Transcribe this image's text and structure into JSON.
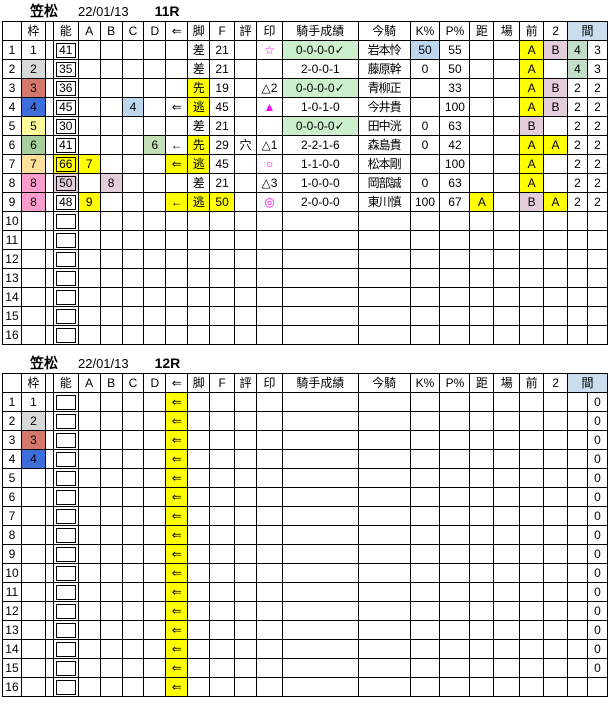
{
  "palette": {
    "yellow": "#FFFF00",
    "paleyellow": "#FFFF9C",
    "gray": "#D9D9D9",
    "salmon": "#D6796C",
    "blue": "#3E6EDC",
    "green6": "#A6CF9B",
    "orange7": "#FFE19B",
    "pink8": "#FF9CCE",
    "lblue": "#BDD7EE",
    "lgreen": "#C5E0B4",
    "mint": "#CCEFCE",
    "sage": "#C2DDC8",
    "thistle": "#E5CEDC",
    "headerblue": "#CBDDEF",
    "magenta": "#FF00FF"
  },
  "tables": [
    {
      "title": {
        "track": "笠松",
        "date": "22/01/13",
        "race": "11R"
      },
      "header": [
        "",
        "枠",
        "",
        "能",
        "A",
        "B",
        "C",
        "D",
        "⇐",
        "脚",
        "F",
        "評",
        "印",
        "騎手成績",
        "今騎",
        "K%",
        "P%",
        "距",
        "場",
        "前",
        "2",
        {
          "t": "間",
          "span": 2,
          "bg": "headerblue"
        }
      ],
      "rows": [
        [
          "1",
          "1",
          "",
          "41",
          "",
          "",
          "",
          "",
          "",
          "差",
          "21",
          "",
          {
            "t": "☆",
            "fg": "magenta"
          },
          {
            "t": "0-0-0-0✓",
            "bg": "mint"
          },
          "岩本怜",
          {
            "t": "50",
            "bg": "lblue"
          },
          "55",
          "",
          "",
          {
            "t": "A",
            "bg": "yellow"
          },
          {
            "t": "B",
            "bg": "thistle"
          },
          {
            "t": "4",
            "bg": "sage"
          },
          "3"
        ],
        [
          "2",
          {
            "t": "2",
            "bg": "gray"
          },
          "",
          "35",
          "",
          "",
          "",
          "",
          "",
          "差",
          "21",
          "",
          "",
          "2-0-0-1",
          "藤原幹",
          "0",
          "50",
          "",
          "",
          {
            "t": "A",
            "bg": "yellow"
          },
          "",
          {
            "t": "4",
            "bg": "sage"
          },
          "3"
        ],
        [
          "3",
          {
            "t": "3",
            "bg": "salmon"
          },
          "",
          "36",
          "",
          "",
          "",
          "",
          "",
          {
            "t": "先",
            "bg": "yellow"
          },
          "19",
          "",
          "△2",
          {
            "t": "0-0-0-0✓",
            "bg": "mint"
          },
          "青柳正",
          "",
          "33",
          "",
          "",
          {
            "t": "A",
            "bg": "yellow"
          },
          {
            "t": "B",
            "bg": "thistle"
          },
          "2",
          "2"
        ],
        [
          "4",
          {
            "t": "4",
            "bg": "blue"
          },
          "",
          "45",
          "",
          "",
          {
            "t": "4",
            "bg": "lblue"
          },
          "",
          "⇐",
          {
            "t": "逃",
            "bg": "yellow"
          },
          "45",
          "",
          {
            "t": "▲",
            "fg": "magenta"
          },
          "1-0-1-0",
          "今井貴",
          "",
          "100",
          "",
          "",
          {
            "t": "A",
            "bg": "yellow"
          },
          {
            "t": "B",
            "bg": "thistle"
          },
          "2",
          "2"
        ],
        [
          "5",
          {
            "t": "5",
            "bg": "paleyellow"
          },
          "",
          "30",
          "",
          "",
          "",
          "",
          "",
          "差",
          "21",
          "",
          "",
          {
            "t": "0-0-0-0✓",
            "bg": "mint"
          },
          "田中洸",
          "0",
          "63",
          "",
          "",
          {
            "t": "B",
            "bg": "thistle"
          },
          "",
          "2",
          "2"
        ],
        [
          "6",
          {
            "t": "6",
            "bg": "green6"
          },
          "",
          "41",
          "",
          "",
          "",
          {
            "t": "6",
            "bg": "lgreen"
          },
          "←",
          {
            "t": "先",
            "bg": "yellow"
          },
          "29",
          "穴",
          "△1",
          "2-2-1-6",
          "森島貴",
          "0",
          "42",
          "",
          "",
          {
            "t": "A",
            "bg": "yellow"
          },
          {
            "t": "A",
            "bg": "yellow"
          },
          "2",
          "2"
        ],
        [
          "7",
          {
            "t": "7",
            "bg": "orange7"
          },
          "",
          {
            "t": "66",
            "bg": "yellow"
          },
          {
            "t": "7",
            "bg": "yellow"
          },
          "",
          "",
          "",
          {
            "t": "⇐",
            "bg": "yellow"
          },
          {
            "t": "逃",
            "bg": "yellow"
          },
          "45",
          "",
          {
            "t": "○",
            "fg": "magenta"
          },
          "1-1-0-0",
          "松本剛",
          "",
          "100",
          "",
          "",
          {
            "t": "A",
            "bg": "yellow"
          },
          "",
          "2",
          "2"
        ],
        [
          "8",
          {
            "t": "8",
            "bg": "pink8"
          },
          "",
          {
            "t": "50",
            "bg": "thistle"
          },
          "",
          {
            "t": "8",
            "bg": "thistle"
          },
          "",
          "",
          "",
          "差",
          "21",
          "",
          "△3",
          "1-0-0-0",
          "岡部誠",
          "0",
          "63",
          "",
          "",
          {
            "t": "A",
            "bg": "yellow"
          },
          "",
          "2",
          "2"
        ],
        [
          "9",
          {
            "t": "8",
            "bg": "pink8"
          },
          "",
          "48",
          {
            "t": "9",
            "bg": "yellow"
          },
          "",
          "",
          "",
          {
            "t": "←",
            "bg": "yellow"
          },
          {
            "t": "逃",
            "bg": "yellow"
          },
          {
            "t": "50",
            "bg": "yellow"
          },
          "",
          {
            "t": "◎",
            "fg": "magenta"
          },
          "2-0-0-0",
          "東川慎",
          "100",
          "67",
          {
            "t": "A",
            "bg": "yellow"
          },
          "",
          {
            "t": "B",
            "bg": "thistle"
          },
          {
            "t": "A",
            "bg": "yellow"
          },
          "2",
          "2"
        ],
        [
          "10",
          "",
          "",
          "",
          "",
          "",
          "",
          "",
          "",
          "",
          "",
          "",
          "",
          "",
          "",
          "",
          "",
          "",
          "",
          "",
          "",
          "",
          ""
        ],
        [
          "11",
          "",
          "",
          "",
          "",
          "",
          "",
          "",
          "",
          "",
          "",
          "",
          "",
          "",
          "",
          "",
          "",
          "",
          "",
          "",
          "",
          "",
          ""
        ],
        [
          "12",
          "",
          "",
          "",
          "",
          "",
          "",
          "",
          "",
          "",
          "",
          "",
          "",
          "",
          "",
          "",
          "",
          "",
          "",
          "",
          "",
          "",
          ""
        ],
        [
          "13",
          "",
          "",
          "",
          "",
          "",
          "",
          "",
          "",
          "",
          "",
          "",
          "",
          "",
          "",
          "",
          "",
          "",
          "",
          "",
          "",
          "",
          ""
        ],
        [
          "14",
          "",
          "",
          "",
          "",
          "",
          "",
          "",
          "",
          "",
          "",
          "",
          "",
          "",
          "",
          "",
          "",
          "",
          "",
          "",
          "",
          "",
          ""
        ],
        [
          "15",
          "",
          "",
          "",
          "",
          "",
          "",
          "",
          "",
          "",
          "",
          "",
          "",
          "",
          "",
          "",
          "",
          "",
          "",
          "",
          "",
          "",
          ""
        ],
        [
          "16",
          "",
          "",
          "",
          "",
          "",
          "",
          "",
          "",
          "",
          "",
          "",
          "",
          "",
          "",
          "",
          "",
          "",
          "",
          "",
          "",
          "",
          ""
        ]
      ]
    },
    {
      "title": {
        "track": "笠松",
        "date": "22/01/13",
        "race": "12R"
      },
      "header": [
        "",
        "枠",
        "",
        "能",
        "A",
        "B",
        "C",
        "D",
        "⇐",
        "脚",
        "F",
        "評",
        "印",
        "騎手成績",
        "今騎",
        "K%",
        "P%",
        "距",
        "場",
        "前",
        "2",
        {
          "t": "間",
          "span": 2,
          "bg": "headerblue"
        }
      ],
      "rows": [
        [
          "1",
          "1",
          "",
          "",
          "",
          "",
          "",
          "",
          {
            "t": "⇐",
            "bg": "yellow"
          },
          "",
          "",
          "",
          "",
          "",
          "",
          "",
          "",
          "",
          "",
          "",
          "",
          "",
          "0"
        ],
        [
          "2",
          {
            "t": "2",
            "bg": "gray"
          },
          "",
          "",
          "",
          "",
          "",
          "",
          {
            "t": "⇐",
            "bg": "yellow"
          },
          "",
          "",
          "",
          "",
          "",
          "",
          "",
          "",
          "",
          "",
          "",
          "",
          "",
          "0"
        ],
        [
          "3",
          {
            "t": "3",
            "bg": "salmon"
          },
          "",
          "",
          "",
          "",
          "",
          "",
          {
            "t": "⇐",
            "bg": "yellow"
          },
          "",
          "",
          "",
          "",
          "",
          "",
          "",
          "",
          "",
          "",
          "",
          "",
          "",
          "0"
        ],
        [
          "4",
          {
            "t": "4",
            "bg": "blue"
          },
          "",
          "",
          "",
          "",
          "",
          "",
          {
            "t": "⇐",
            "bg": "yellow"
          },
          "",
          "",
          "",
          "",
          "",
          "",
          "",
          "",
          "",
          "",
          "",
          "",
          "",
          "0"
        ],
        [
          "5",
          "",
          "",
          "",
          "",
          "",
          "",
          "",
          {
            "t": "⇐",
            "bg": "yellow"
          },
          "",
          "",
          "",
          "",
          "",
          "",
          "",
          "",
          "",
          "",
          "",
          "",
          "",
          "0"
        ],
        [
          "6",
          "",
          "",
          "",
          "",
          "",
          "",
          "",
          {
            "t": "⇐",
            "bg": "yellow"
          },
          "",
          "",
          "",
          "",
          "",
          "",
          "",
          "",
          "",
          "",
          "",
          "",
          "",
          "0"
        ],
        [
          "7",
          "",
          "",
          "",
          "",
          "",
          "",
          "",
          {
            "t": "⇐",
            "bg": "yellow"
          },
          "",
          "",
          "",
          "",
          "",
          "",
          "",
          "",
          "",
          "",
          "",
          "",
          "",
          "0"
        ],
        [
          "8",
          "",
          "",
          "",
          "",
          "",
          "",
          "",
          {
            "t": "⇐",
            "bg": "yellow"
          },
          "",
          "",
          "",
          "",
          "",
          "",
          "",
          "",
          "",
          "",
          "",
          "",
          "",
          "0"
        ],
        [
          "9",
          "",
          "",
          "",
          "",
          "",
          "",
          "",
          {
            "t": "⇐",
            "bg": "yellow"
          },
          "",
          "",
          "",
          "",
          "",
          "",
          "",
          "",
          "",
          "",
          "",
          "",
          "",
          "0"
        ],
        [
          "10",
          "",
          "",
          "",
          "",
          "",
          "",
          "",
          {
            "t": "⇐",
            "bg": "yellow"
          },
          "",
          "",
          "",
          "",
          "",
          "",
          "",
          "",
          "",
          "",
          "",
          "",
          "",
          "0"
        ],
        [
          "11",
          "",
          "",
          "",
          "",
          "",
          "",
          "",
          {
            "t": "⇐",
            "bg": "yellow"
          },
          "",
          "",
          "",
          "",
          "",
          "",
          "",
          "",
          "",
          "",
          "",
          "",
          "",
          "0"
        ],
        [
          "12",
          "",
          "",
          "",
          "",
          "",
          "",
          "",
          {
            "t": "⇐",
            "bg": "yellow"
          },
          "",
          "",
          "",
          "",
          "",
          "",
          "",
          "",
          "",
          "",
          "",
          "",
          "",
          "0"
        ],
        [
          "13",
          "",
          "",
          "",
          "",
          "",
          "",
          "",
          {
            "t": "⇐",
            "bg": "yellow"
          },
          "",
          "",
          "",
          "",
          "",
          "",
          "",
          "",
          "",
          "",
          "",
          "",
          "",
          "0"
        ],
        [
          "14",
          "",
          "",
          "",
          "",
          "",
          "",
          "",
          {
            "t": "⇐",
            "bg": "yellow"
          },
          "",
          "",
          "",
          "",
          "",
          "",
          "",
          "",
          "",
          "",
          "",
          "",
          "",
          "0"
        ],
        [
          "15",
          "",
          "",
          "",
          "",
          "",
          "",
          "",
          {
            "t": "⇐",
            "bg": "yellow"
          },
          "",
          "",
          "",
          "",
          "",
          "",
          "",
          "",
          "",
          "",
          "",
          "",
          "",
          "0"
        ],
        [
          "16",
          "",
          "",
          "",
          "",
          "",
          "",
          "",
          {
            "t": "⇐",
            "bg": "yellow"
          },
          "",
          "",
          "",
          "",
          "",
          "",
          "",
          "",
          "",
          "",
          "",
          "",
          "",
          ""
        ]
      ]
    }
  ]
}
